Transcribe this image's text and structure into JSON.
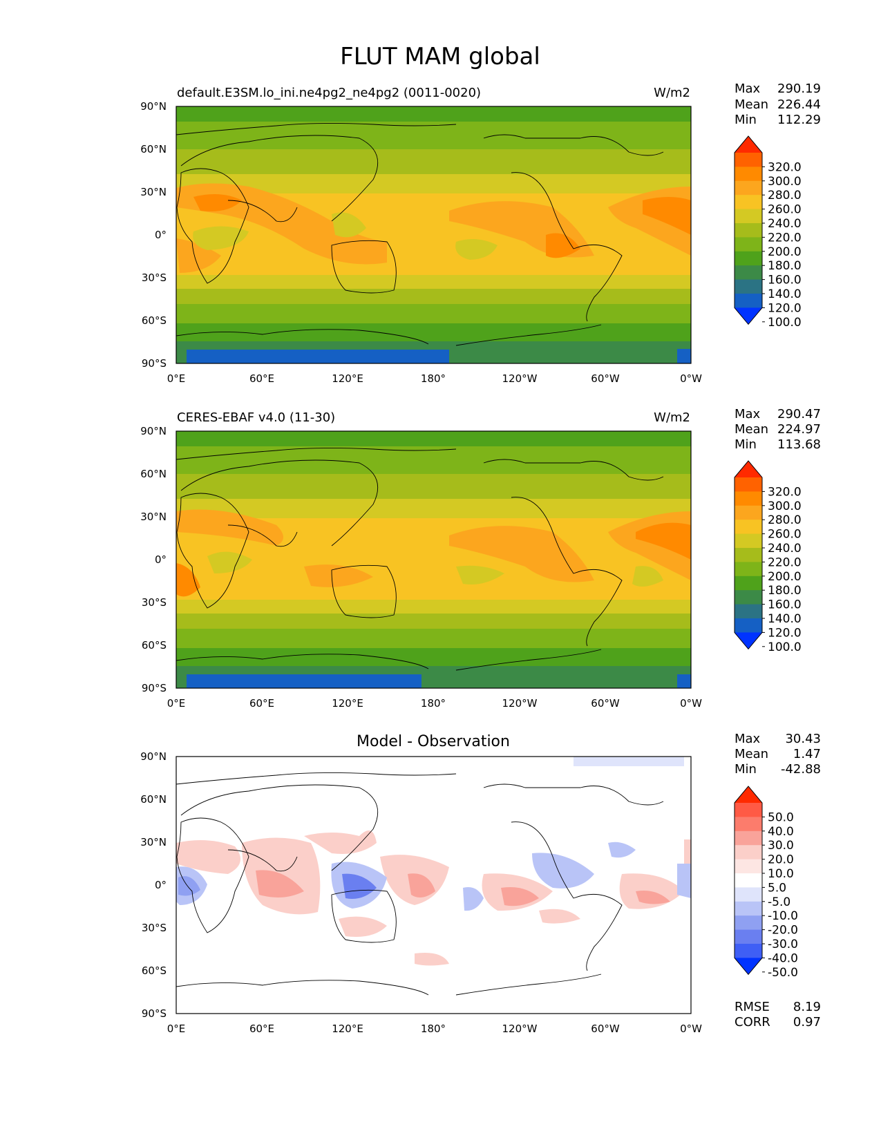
{
  "figure": {
    "title": "FLUT MAM global"
  },
  "axes": {
    "lat_ticks": [
      "90°N",
      "60°N",
      "30°N",
      "0°",
      "30°S",
      "60°S",
      "90°S"
    ],
    "lon_ticks": [
      "0°E",
      "60°E",
      "120°E",
      "180°",
      "120°W",
      "60°W",
      "0°W"
    ]
  },
  "panels": [
    {
      "id": "model",
      "left_title": "default.E3SM.lo_ini.ne4pg2_ne4pg2 (0011-0020)",
      "center_title": "",
      "units": "W/m2",
      "stats": [
        {
          "label": "Max",
          "value": "290.19"
        },
        {
          "label": "Mean",
          "value": "226.44"
        },
        {
          "label": "Min",
          "value": "112.29"
        }
      ],
      "extra_stats": [],
      "colorbar_levels": [
        "320.0",
        "300.0",
        "280.0",
        "260.0",
        "240.0",
        "220.0",
        "200.0",
        "180.0",
        "160.0",
        "140.0",
        "120.0",
        "100.0"
      ],
      "colorbar_colors": [
        "#ff2a00",
        "#ff6200",
        "#ff8a00",
        "#fca61e",
        "#f8c323",
        "#d4c923",
        "#a6bc1b",
        "#7eb419",
        "#4fa21b",
        "#3c8a47",
        "#2b7384",
        "#1560c4",
        "#0033ff"
      ]
    },
    {
      "id": "obs",
      "left_title": "CERES-EBAF v4.0 (11-30)",
      "center_title": "",
      "units": "W/m2",
      "stats": [
        {
          "label": "Max",
          "value": "290.47"
        },
        {
          "label": "Mean",
          "value": "224.97"
        },
        {
          "label": "Min",
          "value": "113.68"
        }
      ],
      "extra_stats": [],
      "colorbar_levels": [
        "320.0",
        "300.0",
        "280.0",
        "260.0",
        "240.0",
        "220.0",
        "200.0",
        "180.0",
        "160.0",
        "140.0",
        "120.0",
        "100.0"
      ],
      "colorbar_colors": [
        "#ff2a00",
        "#ff6200",
        "#ff8a00",
        "#fca61e",
        "#f8c323",
        "#d4c923",
        "#a6bc1b",
        "#7eb419",
        "#4fa21b",
        "#3c8a47",
        "#2b7384",
        "#1560c4",
        "#0033ff"
      ]
    },
    {
      "id": "diff",
      "left_title": "",
      "center_title": "Model - Observation",
      "units": "",
      "stats": [
        {
          "label": "Max",
          "value": "30.43"
        },
        {
          "label": "Mean",
          "value": "1.47"
        },
        {
          "label": "Min",
          "value": "-42.88"
        }
      ],
      "extra_stats": [
        {
          "label": "RMSE",
          "value": "8.19"
        },
        {
          "label": "CORR",
          "value": "0.97"
        }
      ],
      "colorbar_levels": [
        "50.0",
        "40.0",
        "30.0",
        "20.0",
        "10.0",
        "5.0",
        "-5.0",
        "-10.0",
        "-20.0",
        "-30.0",
        "-40.0",
        "-50.0"
      ],
      "colorbar_colors": [
        "#ff2a00",
        "#ff5a45",
        "#fc7c6c",
        "#f9a39a",
        "#fbcfc9",
        "#fde6e3",
        "#ffffff",
        "#dfe4fb",
        "#b9c4f7",
        "#8fa0f2",
        "#6a7ff0",
        "#3f5ff5",
        "#0033ff"
      ]
    }
  ]
}
